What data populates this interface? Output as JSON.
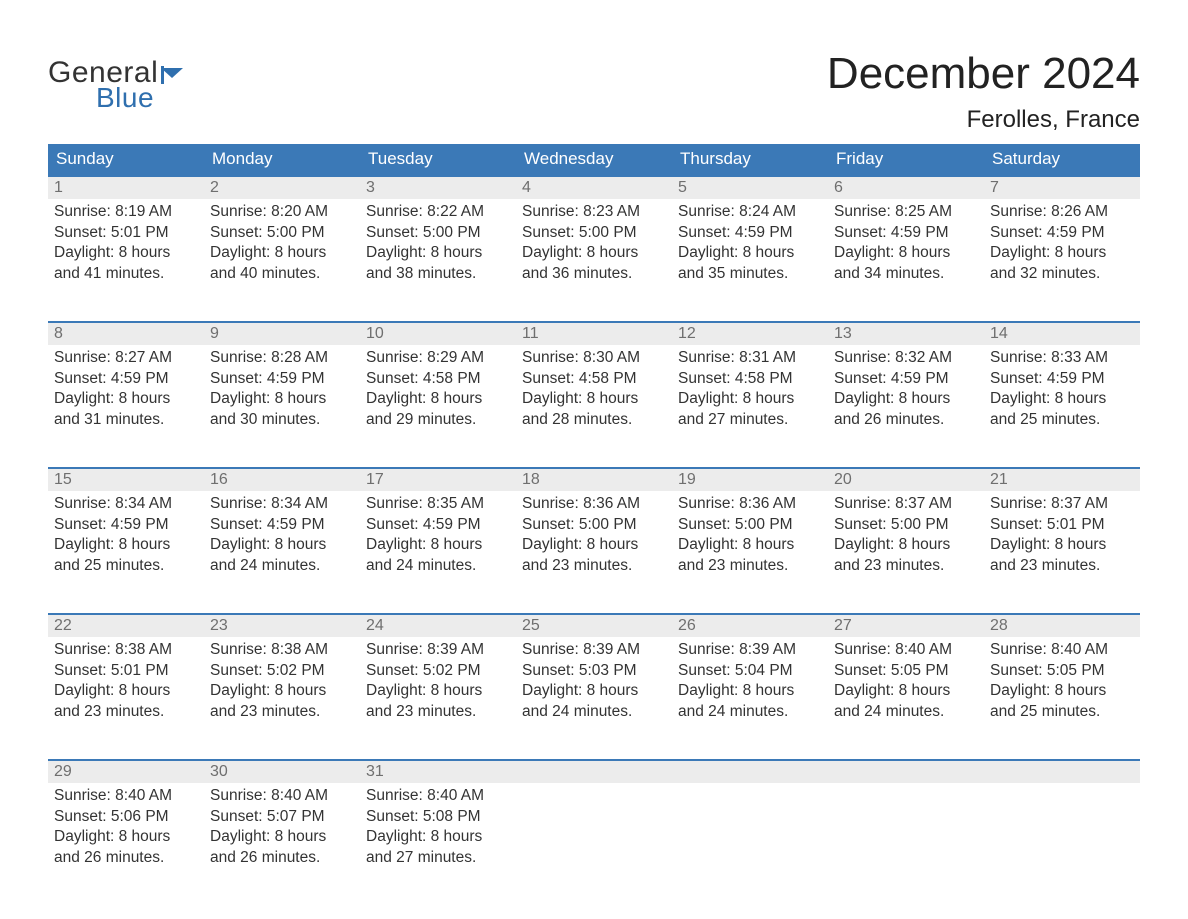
{
  "brand": {
    "text_general": "General",
    "text_blue": "Blue",
    "flag_color": "#2f6fae"
  },
  "title": "December 2024",
  "location": "Ferolles, France",
  "colors": {
    "header_bg": "#3b79b7",
    "header_text": "#ffffff",
    "row_divider": "#3b79b7",
    "daynum_bg": "#ececec",
    "daynum_text": "#6f6f6f",
    "body_text": "#333333",
    "page_bg": "#ffffff"
  },
  "weekdays": [
    "Sunday",
    "Monday",
    "Tuesday",
    "Wednesday",
    "Thursday",
    "Friday",
    "Saturday"
  ],
  "labels": {
    "sunrise": "Sunrise:",
    "sunset": "Sunset:",
    "daylight": "Daylight:"
  },
  "weeks": [
    [
      {
        "n": "1",
        "sunrise": "8:19 AM",
        "sunset": "5:01 PM",
        "daylight": "8 hours and 41 minutes."
      },
      {
        "n": "2",
        "sunrise": "8:20 AM",
        "sunset": "5:00 PM",
        "daylight": "8 hours and 40 minutes."
      },
      {
        "n": "3",
        "sunrise": "8:22 AM",
        "sunset": "5:00 PM",
        "daylight": "8 hours and 38 minutes."
      },
      {
        "n": "4",
        "sunrise": "8:23 AM",
        "sunset": "5:00 PM",
        "daylight": "8 hours and 36 minutes."
      },
      {
        "n": "5",
        "sunrise": "8:24 AM",
        "sunset": "4:59 PM",
        "daylight": "8 hours and 35 minutes."
      },
      {
        "n": "6",
        "sunrise": "8:25 AM",
        "sunset": "4:59 PM",
        "daylight": "8 hours and 34 minutes."
      },
      {
        "n": "7",
        "sunrise": "8:26 AM",
        "sunset": "4:59 PM",
        "daylight": "8 hours and 32 minutes."
      }
    ],
    [
      {
        "n": "8",
        "sunrise": "8:27 AM",
        "sunset": "4:59 PM",
        "daylight": "8 hours and 31 minutes."
      },
      {
        "n": "9",
        "sunrise": "8:28 AM",
        "sunset": "4:59 PM",
        "daylight": "8 hours and 30 minutes."
      },
      {
        "n": "10",
        "sunrise": "8:29 AM",
        "sunset": "4:58 PM",
        "daylight": "8 hours and 29 minutes."
      },
      {
        "n": "11",
        "sunrise": "8:30 AM",
        "sunset": "4:58 PM",
        "daylight": "8 hours and 28 minutes."
      },
      {
        "n": "12",
        "sunrise": "8:31 AM",
        "sunset": "4:58 PM",
        "daylight": "8 hours and 27 minutes."
      },
      {
        "n": "13",
        "sunrise": "8:32 AM",
        "sunset": "4:59 PM",
        "daylight": "8 hours and 26 minutes."
      },
      {
        "n": "14",
        "sunrise": "8:33 AM",
        "sunset": "4:59 PM",
        "daylight": "8 hours and 25 minutes."
      }
    ],
    [
      {
        "n": "15",
        "sunrise": "8:34 AM",
        "sunset": "4:59 PM",
        "daylight": "8 hours and 25 minutes."
      },
      {
        "n": "16",
        "sunrise": "8:34 AM",
        "sunset": "4:59 PM",
        "daylight": "8 hours and 24 minutes."
      },
      {
        "n": "17",
        "sunrise": "8:35 AM",
        "sunset": "4:59 PM",
        "daylight": "8 hours and 24 minutes."
      },
      {
        "n": "18",
        "sunrise": "8:36 AM",
        "sunset": "5:00 PM",
        "daylight": "8 hours and 23 minutes."
      },
      {
        "n": "19",
        "sunrise": "8:36 AM",
        "sunset": "5:00 PM",
        "daylight": "8 hours and 23 minutes."
      },
      {
        "n": "20",
        "sunrise": "8:37 AM",
        "sunset": "5:00 PM",
        "daylight": "8 hours and 23 minutes."
      },
      {
        "n": "21",
        "sunrise": "8:37 AM",
        "sunset": "5:01 PM",
        "daylight": "8 hours and 23 minutes."
      }
    ],
    [
      {
        "n": "22",
        "sunrise": "8:38 AM",
        "sunset": "5:01 PM",
        "daylight": "8 hours and 23 minutes."
      },
      {
        "n": "23",
        "sunrise": "8:38 AM",
        "sunset": "5:02 PM",
        "daylight": "8 hours and 23 minutes."
      },
      {
        "n": "24",
        "sunrise": "8:39 AM",
        "sunset": "5:02 PM",
        "daylight": "8 hours and 23 minutes."
      },
      {
        "n": "25",
        "sunrise": "8:39 AM",
        "sunset": "5:03 PM",
        "daylight": "8 hours and 24 minutes."
      },
      {
        "n": "26",
        "sunrise": "8:39 AM",
        "sunset": "5:04 PM",
        "daylight": "8 hours and 24 minutes."
      },
      {
        "n": "27",
        "sunrise": "8:40 AM",
        "sunset": "5:05 PM",
        "daylight": "8 hours and 24 minutes."
      },
      {
        "n": "28",
        "sunrise": "8:40 AM",
        "sunset": "5:05 PM",
        "daylight": "8 hours and 25 minutes."
      }
    ],
    [
      {
        "n": "29",
        "sunrise": "8:40 AM",
        "sunset": "5:06 PM",
        "daylight": "8 hours and 26 minutes."
      },
      {
        "n": "30",
        "sunrise": "8:40 AM",
        "sunset": "5:07 PM",
        "daylight": "8 hours and 26 minutes."
      },
      {
        "n": "31",
        "sunrise": "8:40 AM",
        "sunset": "5:08 PM",
        "daylight": "8 hours and 27 minutes."
      },
      null,
      null,
      null,
      null
    ]
  ]
}
